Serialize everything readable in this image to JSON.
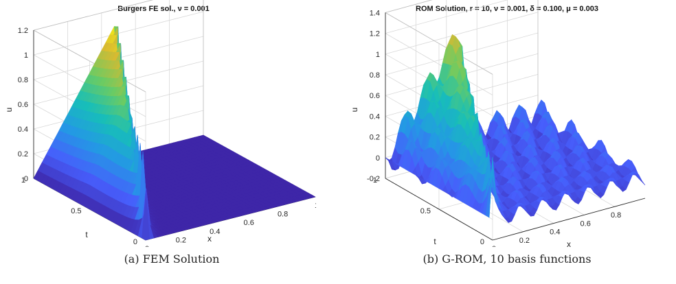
{
  "chart_data": [
    {
      "type": "surface",
      "title": "Burgers FE sol., ν = 0.001",
      "xlabel": "x",
      "ylabel": "t",
      "zlabel": "u",
      "xlim": [
        0,
        1
      ],
      "ylim": [
        0,
        1
      ],
      "zlim": [
        0,
        1.2
      ],
      "xticks": [
        "0",
        "0.2",
        "0.4",
        "0.6",
        "0.8",
        "1"
      ],
      "yticks": [
        "0",
        "0.5",
        "1"
      ],
      "zticks": [
        "0",
        "0.2",
        "0.4",
        "0.6",
        "0.8",
        "1",
        "1.2"
      ],
      "peak_u": 1.12,
      "shock_x_at_t1": 0.5,
      "colormap": "parula",
      "caption": "(a) FEM Solution"
    },
    {
      "type": "surface",
      "title": "ROM Solution, r = 10, ν = 0.001, δ = 0.100, μ = 0.003",
      "xlabel": "x",
      "ylabel": "t",
      "zlabel": "u",
      "xlim": [
        0,
        1
      ],
      "ylim": [
        0,
        1
      ],
      "zlim": [
        -0.2,
        1.4
      ],
      "xticks": [
        "0",
        "0.2",
        "0.4",
        "0.6",
        "0.8"
      ],
      "yticks": [
        "0",
        "0.5",
        "1"
      ],
      "zticks": [
        "-0.2",
        "0",
        "0.2",
        "0.4",
        "0.6",
        "0.8",
        "1",
        "1.2",
        "1.4"
      ],
      "peak_u": 1.3,
      "oscillation_amplitude": 0.2,
      "colormap": "parula",
      "caption": "(b) G-ROM, 10 basis functions"
    }
  ],
  "colors": {
    "low": "#3e26a8",
    "mid": "#17a9d5",
    "high": "#f9fb0e",
    "orange": "#f6b03a"
  }
}
